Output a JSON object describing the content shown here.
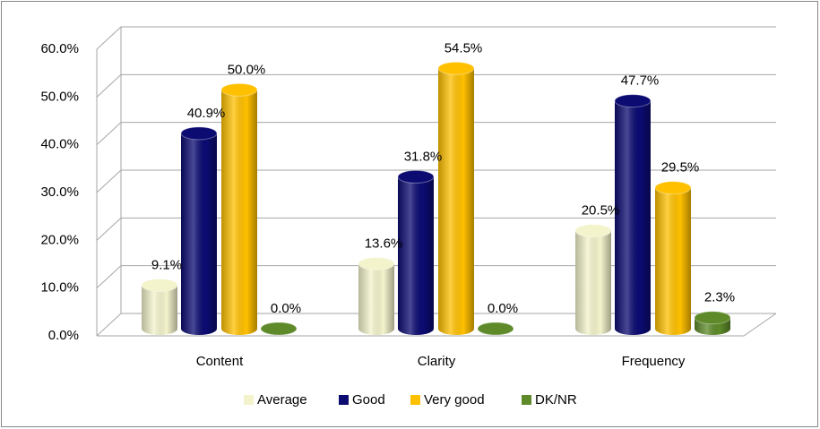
{
  "chart_data": {
    "type": "bar3d",
    "categories": [
      "Content",
      "Clarity",
      "Frequency"
    ],
    "series": [
      {
        "name": "Average",
        "color": "#f3f3cc",
        "values": [
          9.1,
          13.6,
          20.5
        ],
        "value_labels": [
          "9.1%",
          "13.6%",
          "20.5%"
        ]
      },
      {
        "name": "Good",
        "color": "#0b0b72",
        "values": [
          40.9,
          31.8,
          47.7
        ],
        "value_labels": [
          "40.9%",
          "31.8%",
          "47.7%"
        ]
      },
      {
        "name": "Very good",
        "color": "#ffc000",
        "values": [
          50.0,
          54.5,
          29.5
        ],
        "value_labels": [
          "50.0%",
          "54.5%",
          "29.5%"
        ]
      },
      {
        "name": "DK/NR",
        "color": "#5e8a2a",
        "values": [
          0.0,
          0.0,
          2.3
        ],
        "value_labels": [
          "0.0%",
          "0.0%",
          "2.3%"
        ]
      }
    ],
    "ylim": [
      0,
      60
    ],
    "yticks": [
      {
        "value": 0,
        "label": "0.0%"
      },
      {
        "value": 10,
        "label": "10.0%"
      },
      {
        "value": 20,
        "label": "20.0%"
      },
      {
        "value": 30,
        "label": "30.0%"
      },
      {
        "value": 40,
        "label": "40.0%"
      },
      {
        "value": 50,
        "label": "50.0%"
      },
      {
        "value": 60,
        "label": "60.0%"
      }
    ],
    "grid": true,
    "legend": "bottom"
  }
}
